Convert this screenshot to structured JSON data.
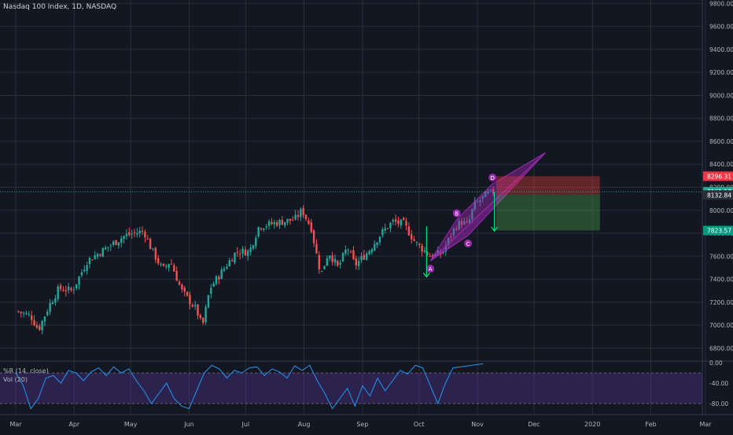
{
  "header": {
    "title": "Nasdaq 100 Index, 1D, NASDAQ",
    "indicator_1": "%R (14, close)",
    "indicator_2": "Vol (20)"
  },
  "colors": {
    "background": "#131722",
    "grid": "#2a2e39",
    "up": "#26a69a",
    "down": "#ef5350",
    "pattern": "#9c27b0",
    "stop_zone": "#f44336",
    "target_zone": "#4caf50",
    "price_line": "#26a69a",
    "wr_line": "#2196f3"
  },
  "chart_data": [
    {
      "type": "candlestick",
      "title": "Nasdaq 100 Index, 1D, NASDAQ",
      "ylim": [
        6700,
        9830
      ],
      "y_ticks": [
        6800,
        7000,
        7200,
        7400,
        7600,
        7800,
        8000,
        8200,
        8400,
        8600,
        8800,
        9000,
        9200,
        9400,
        9600,
        9800
      ],
      "y_tick_labels": [
        "6800.00",
        "7000.00",
        "7200.00",
        "7400.00",
        "7600.00",
        "7800.00",
        "8000.00",
        "8200.00",
        "8400.00",
        "8600.00",
        "8800.00",
        "9000.00",
        "9200.00",
        "9400.00",
        "9600.00",
        "9800.00"
      ],
      "x_ticks": [
        {
          "label": "Mar",
          "day": 0
        },
        {
          "label": "Apr",
          "day": 31
        },
        {
          "label": "May",
          "day": 61
        },
        {
          "label": "Jun",
          "day": 92
        },
        {
          "label": "Jul",
          "day": 122
        },
        {
          "label": "Aug",
          "day": 153
        },
        {
          "label": "Sep",
          "day": 184
        },
        {
          "label": "Oct",
          "day": 214
        },
        {
          "label": "Nov",
          "day": 245
        },
        {
          "label": "Dec",
          "day": 275
        },
        {
          "label": "2020",
          "day": 306
        },
        {
          "label": "Feb",
          "day": 337
        },
        {
          "label": "Mar",
          "day": 366
        }
      ],
      "close_path": [
        [
          "2019-02-25",
          7120
        ],
        [
          "2019-03-04",
          7080
        ],
        [
          "2019-03-08",
          6960
        ],
        [
          "2019-03-14",
          7180
        ],
        [
          "2019-03-19",
          7320
        ],
        [
          "2019-03-26",
          7300
        ],
        [
          "2019-04-03",
          7560
        ],
        [
          "2019-04-12",
          7660
        ],
        [
          "2019-04-23",
          7780
        ],
        [
          "2019-05-03",
          7820
        ],
        [
          "2019-05-07",
          7660
        ],
        [
          "2019-05-13",
          7480
        ],
        [
          "2019-05-17",
          7560
        ],
        [
          "2019-05-23",
          7300
        ],
        [
          "2019-05-31",
          7130
        ],
        [
          "2019-06-03",
          6980
        ],
        [
          "2019-06-07",
          7320
        ],
        [
          "2019-06-14",
          7480
        ],
        [
          "2019-06-21",
          7640
        ],
        [
          "2019-06-28",
          7640
        ],
        [
          "2019-07-03",
          7860
        ],
        [
          "2019-07-15",
          7900
        ],
        [
          "2019-07-22",
          7920
        ],
        [
          "2019-07-26",
          8000
        ],
        [
          "2019-07-31",
          7840
        ],
        [
          "2019-08-02",
          7660
        ],
        [
          "2019-08-05",
          7440
        ],
        [
          "2019-08-09",
          7640
        ],
        [
          "2019-08-14",
          7500
        ],
        [
          "2019-08-19",
          7680
        ],
        [
          "2019-08-23",
          7520
        ],
        [
          "2019-08-30",
          7640
        ],
        [
          "2019-09-06",
          7800
        ],
        [
          "2019-09-12",
          7900
        ],
        [
          "2019-09-18",
          7880
        ],
        [
          "2019-09-24",
          7720
        ],
        [
          "2019-10-02",
          7600
        ],
        [
          "2019-10-08",
          7620
        ],
        [
          "2019-10-15",
          7850
        ],
        [
          "2019-10-18",
          7900
        ],
        [
          "2019-10-22",
          7870
        ],
        [
          "2019-10-25",
          8040
        ],
        [
          "2019-11-01",
          8140
        ],
        [
          "2019-11-05",
          8160
        ]
      ],
      "current_price": 8161.17,
      "pattern": {
        "name": "ABCD",
        "points": [
          {
            "label": "A",
            "date": "2019-10-02",
            "value": 7560
          },
          {
            "label": "B",
            "date": "2019-10-16",
            "value": 7920
          },
          {
            "label": "C",
            "date": "2019-10-22",
            "value": 7780
          },
          {
            "label": "D",
            "date": "2019-11-04",
            "value": 8230
          }
        ],
        "channel_apex": {
          "date": "2019-12-02",
          "value": 8500
        }
      },
      "position": {
        "start_date": "2019-11-06",
        "end_date": "2019-12-31",
        "stop": 8296.31,
        "entry": 8132.84,
        "target": 7823.57
      },
      "price_labels": [
        {
          "text": "8296.31",
          "value": 8296.31,
          "kind": "stop"
        },
        {
          "text": "8161.17",
          "value": 8161.17,
          "kind": "current"
        },
        {
          "text": "8132.84",
          "value": 8132.84,
          "kind": "entry"
        },
        {
          "text": "7823.57",
          "value": 7823.57,
          "kind": "target"
        }
      ]
    },
    {
      "type": "line",
      "title": "%R (14, close)",
      "ylim": [
        -100,
        0
      ],
      "y_ticks": [
        0,
        -40,
        -80
      ],
      "y_tick_labels": [
        "0.00",
        "-40.00",
        "-80.00"
      ],
      "band": [
        -20,
        -80
      ],
      "x": [
        0,
        4,
        8,
        12,
        16,
        20,
        24,
        28,
        32,
        36,
        40,
        44,
        48,
        52,
        56,
        60,
        64,
        68,
        72,
        76,
        80,
        84,
        88,
        92,
        96,
        100,
        104,
        108,
        112,
        116,
        120,
        124,
        128,
        132,
        136,
        140,
        144,
        148,
        152,
        156,
        160,
        164,
        168,
        172,
        176,
        180,
        184,
        188,
        192,
        196,
        200,
        204,
        208,
        212,
        216,
        220,
        224,
        228,
        232,
        236,
        240,
        244,
        248
      ],
      "values": [
        -20,
        -45,
        -90,
        -70,
        -30,
        -25,
        -40,
        -15,
        -20,
        -35,
        -18,
        -10,
        -25,
        -8,
        -20,
        -12,
        -35,
        -55,
        -80,
        -60,
        -40,
        -70,
        -85,
        -90,
        -55,
        -20,
        -5,
        -12,
        -30,
        -15,
        -20,
        -10,
        -8,
        -25,
        -12,
        -18,
        -30,
        -6,
        -15,
        -5,
        -35,
        -60,
        -90,
        -70,
        -50,
        -85,
        -45,
        -65,
        -30,
        -55,
        -35,
        -15,
        -22,
        -5,
        -10,
        -45,
        -80,
        -40,
        -10,
        -8,
        -6,
        -4,
        -2
      ]
    }
  ]
}
